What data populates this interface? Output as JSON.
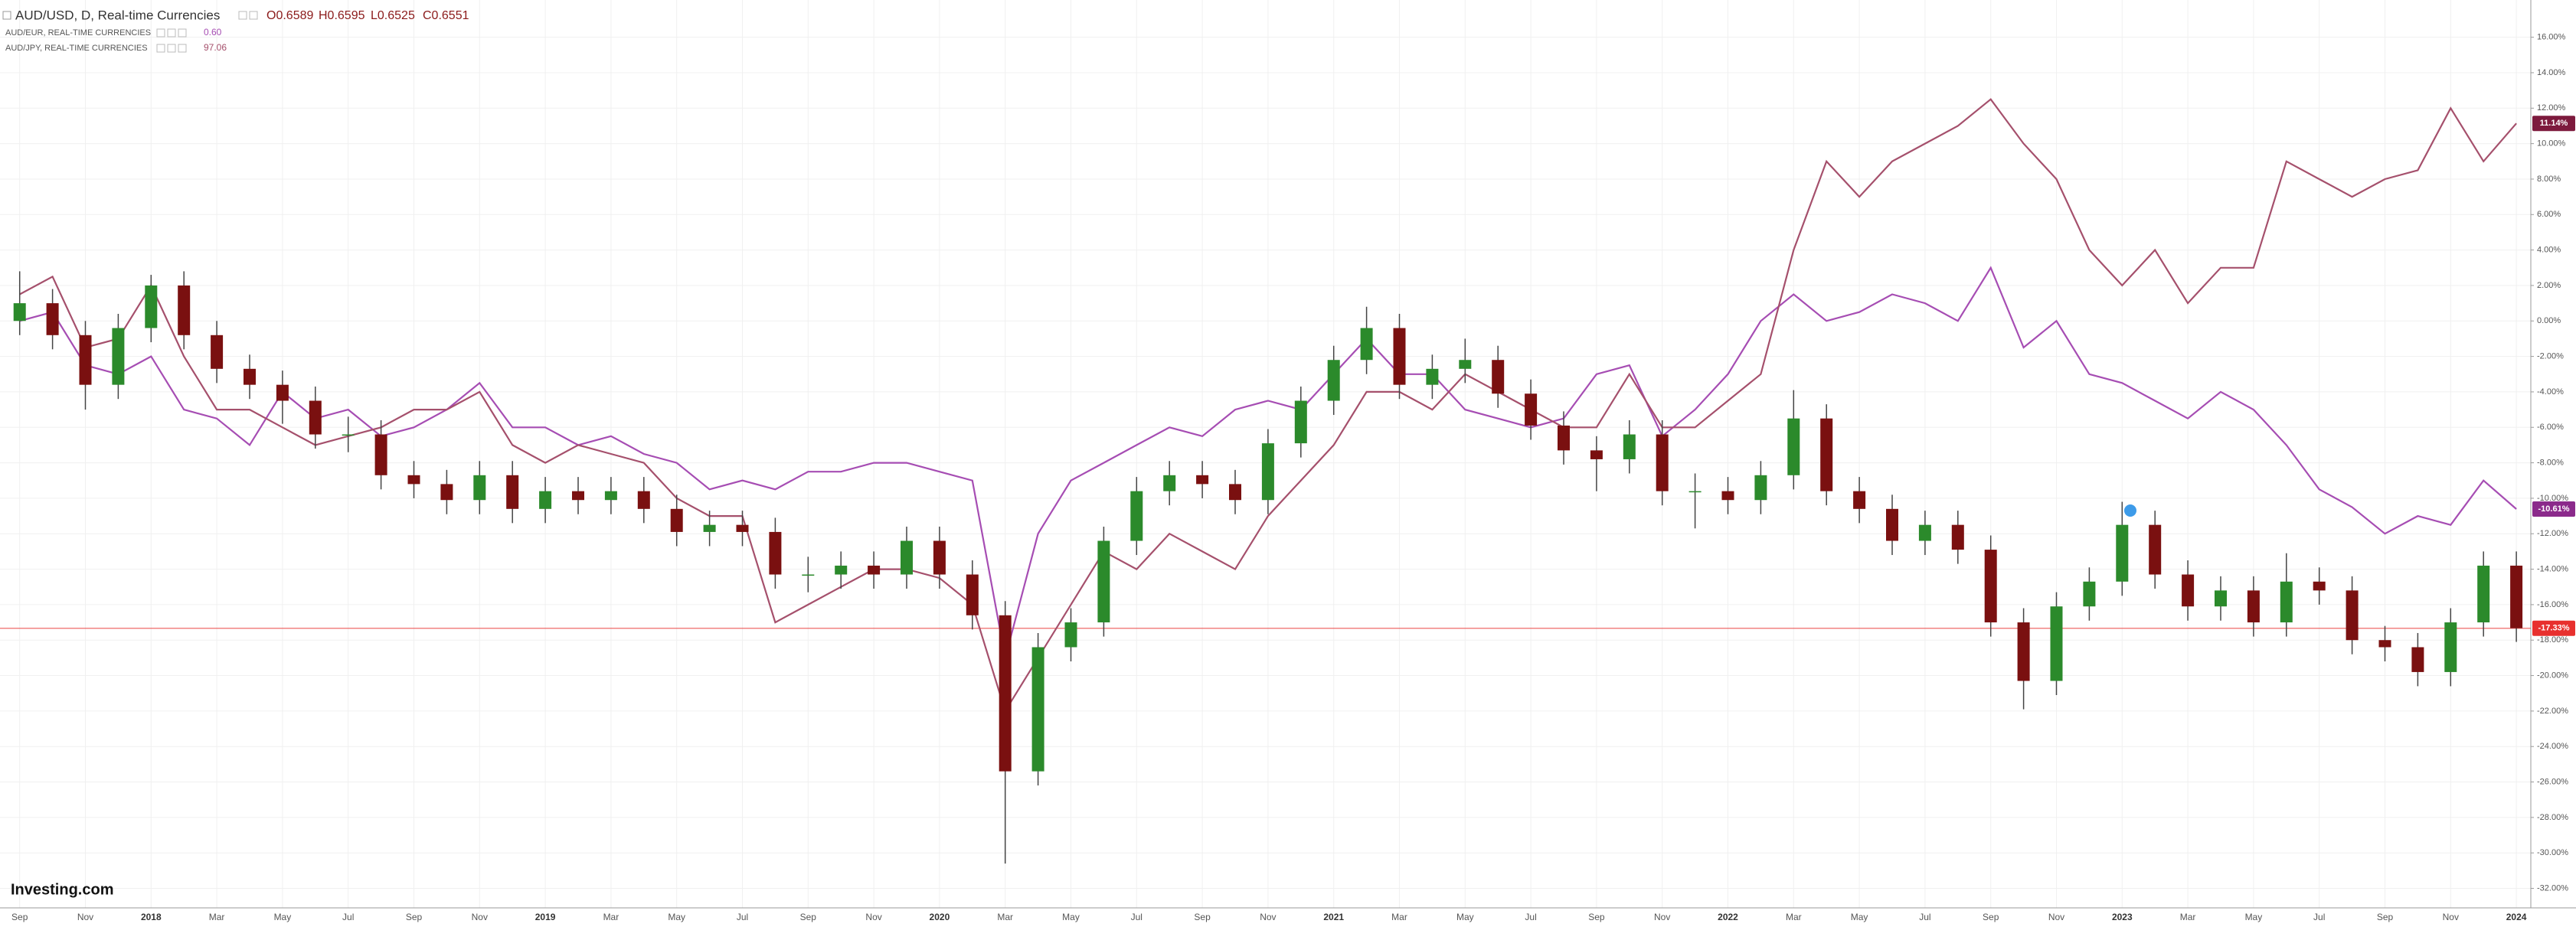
{
  "chart_data": {
    "type": "candlestick",
    "title": "AUD/USD, D, Real-time Currencies",
    "quote": [
      "O0.6589",
      "H0.6595",
      "L0.6525",
      "C0.6551"
    ],
    "brand": "Investing.com",
    "categories": [
      "Sep",
      null,
      "Nov",
      null,
      "2018",
      null,
      "Mar",
      null,
      "May",
      null,
      "Jul",
      null,
      "Sep",
      null,
      "Nov",
      null,
      "2019",
      null,
      "Mar",
      null,
      "May",
      null,
      "Jul",
      null,
      "Sep",
      null,
      "Nov",
      null,
      "2020",
      null,
      "Mar",
      null,
      "May",
      null,
      "Jul",
      null,
      "Sep",
      null,
      "Nov",
      null,
      "2021",
      null,
      "Mar",
      null,
      "May",
      null,
      "Jul",
      null,
      "Sep",
      null,
      "Nov",
      null,
      "2022",
      null,
      "Mar",
      null,
      "May",
      null,
      "Jul",
      null,
      "Sep",
      null,
      "Nov",
      null,
      "2023",
      null,
      "Mar",
      null,
      "May",
      null,
      "Jul",
      null,
      "Sep",
      null,
      "Nov",
      null,
      "2024"
    ],
    "candles": {
      "up_color": "#2b8a2b",
      "down_color": "#7a1010",
      "open": [
        0.0,
        1.0,
        -0.8,
        -3.6,
        -0.4,
        2.0,
        -0.8,
        -2.7,
        -3.6,
        -4.5,
        -6.4,
        -6.4,
        -8.7,
        -9.2,
        -10.1,
        -8.7,
        -10.6,
        -9.6,
        -10.1,
        -9.6,
        -10.6,
        -11.9,
        -11.5,
        -11.9,
        -14.3,
        -14.3,
        -13.8,
        -14.3,
        -12.4,
        -14.3,
        -16.6,
        -25.4,
        -18.4,
        -17.0,
        -12.4,
        -9.6,
        -8.7,
        -9.2,
        -10.1,
        -6.9,
        -4.5,
        -2.2,
        -0.4,
        -3.6,
        -2.7,
        -2.2,
        -4.1,
        -5.9,
        -7.3,
        -7.8,
        -6.4,
        -9.6,
        -9.6,
        -10.1,
        -8.7,
        -5.5,
        -9.6,
        -10.6,
        -12.4,
        -11.5,
        -12.9,
        -17.0,
        -20.3,
        -16.1,
        -14.7,
        -11.5,
        -14.3,
        -16.1,
        -15.2,
        -17.0,
        -14.7,
        -15.2,
        -18.0,
        -18.4,
        -19.8,
        -17.0,
        -13.8
      ],
      "high": [
        2.8,
        1.8,
        0.0,
        0.4,
        2.6,
        2.8,
        0.0,
        -1.9,
        -2.8,
        -3.7,
        -5.4,
        -5.6,
        -7.9,
        -8.4,
        -7.9,
        -7.9,
        -8.8,
        -8.8,
        -8.8,
        -8.8,
        -9.8,
        -10.7,
        -10.7,
        -11.1,
        -13.3,
        -13.0,
        -13.0,
        -11.6,
        -11.6,
        -13.5,
        -15.8,
        -17.6,
        -16.2,
        -11.6,
        -8.8,
        -7.9,
        -7.9,
        -8.4,
        -6.1,
        -3.7,
        -1.4,
        0.8,
        0.4,
        -1.9,
        -1.0,
        -1.4,
        -3.3,
        -5.1,
        -6.5,
        -5.6,
        -5.6,
        -8.6,
        -8.8,
        -7.9,
        -3.9,
        -4.7,
        -8.8,
        -9.8,
        -10.7,
        -10.7,
        -12.1,
        -16.2,
        -15.3,
        -13.9,
        -10.2,
        -10.7,
        -13.5,
        -14.4,
        -14.4,
        -13.1,
        -13.9,
        -14.4,
        -17.2,
        -17.6,
        -16.2,
        -13.0,
        -13.0
      ],
      "low": [
        -0.8,
        -1.6,
        -5.0,
        -4.4,
        -1.2,
        -1.6,
        -3.5,
        -4.4,
        -5.8,
        -7.2,
        -7.4,
        -9.5,
        -10.0,
        -10.9,
        -10.9,
        -11.4,
        -11.4,
        -10.9,
        -10.9,
        -11.4,
        -12.7,
        -12.7,
        -12.7,
        -15.1,
        -15.3,
        -15.1,
        -15.1,
        -15.1,
        -15.1,
        -17.4,
        -30.6,
        -26.2,
        -19.2,
        -17.8,
        -13.2,
        -10.4,
        -10.0,
        -10.9,
        -10.9,
        -7.7,
        -5.3,
        -3.0,
        -4.4,
        -4.4,
        -3.5,
        -4.9,
        -6.7,
        -8.1,
        -9.6,
        -8.6,
        -10.4,
        -11.7,
        -10.9,
        -10.9,
        -9.5,
        -10.4,
        -11.4,
        -13.2,
        -13.2,
        -13.7,
        -17.8,
        -21.9,
        -21.1,
        -16.9,
        -15.5,
        -15.1,
        -16.9,
        -16.9,
        -17.8,
        -17.8,
        -16.0,
        -18.8,
        -19.2,
        -20.6,
        -20.6,
        -17.8,
        -18.1
      ],
      "close": [
        1.0,
        -0.8,
        -3.6,
        -0.4,
        2.0,
        -0.8,
        -2.7,
        -3.6,
        -4.5,
        -6.4,
        -6.4,
        -8.7,
        -9.2,
        -10.1,
        -8.7,
        -10.6,
        -9.6,
        -10.1,
        -9.6,
        -10.6,
        -11.9,
        -11.5,
        -11.9,
        -14.3,
        -14.3,
        -13.8,
        -14.3,
        -12.4,
        -14.3,
        -16.6,
        -25.4,
        -18.4,
        -17.0,
        -12.4,
        -9.6,
        -8.7,
        -9.2,
        -10.1,
        -6.9,
        -4.5,
        -2.2,
        -0.4,
        -3.6,
        -2.7,
        -2.2,
        -4.1,
        -5.9,
        -7.3,
        -7.8,
        -6.4,
        -9.6,
        -9.6,
        -10.1,
        -8.7,
        -5.5,
        -9.6,
        -10.6,
        -12.4,
        -11.5,
        -12.9,
        -17.0,
        -20.3,
        -16.1,
        -14.7,
        -11.5,
        -14.3,
        -16.1,
        -15.2,
        -17.0,
        -14.7,
        -15.2,
        -18.0,
        -18.4,
        -19.8,
        -17.0,
        -13.8,
        -17.33
      ]
    },
    "price_line": {
      "value": -17.33,
      "label": "-17.33%",
      "color": "#e8302e"
    },
    "series": [
      {
        "name": "AUD/EUR, REAL-TIME CURRENCIES",
        "quote": "0.60",
        "color": "#a64db3",
        "label_color": "#8b2a8b",
        "last_label": "-10.61%",
        "values": [
          0,
          0.5,
          -2.5,
          -3,
          -2,
          -5,
          -5.5,
          -7,
          -4,
          -5.5,
          -5,
          -6.5,
          -6,
          -5,
          -3.5,
          -6,
          -6,
          -7,
          -6.5,
          -7.5,
          -8,
          -9.5,
          -9,
          -9.5,
          -8.5,
          -8.5,
          -8,
          -8,
          -8.5,
          -9,
          -19,
          -12,
          -9,
          -8,
          -7,
          -6,
          -6.5,
          -5,
          -4.5,
          -5,
          -3,
          -1,
          -3,
          -3,
          -5,
          -5.5,
          -6,
          -5.5,
          -3,
          -2.5,
          -6.5,
          -5,
          -3,
          0,
          1.5,
          0,
          0.5,
          1.5,
          1,
          0,
          3,
          -1.5,
          0,
          -3,
          -3.5,
          -4.5,
          -5.5,
          -4,
          -5,
          -7,
          -9.5,
          -10.5,
          -12,
          -11,
          -11.5,
          -9,
          -10.61
        ]
      },
      {
        "name": "AUD/JPY, REAL-TIME CURRENCIES",
        "quote": "97.06",
        "color": "#a5506c",
        "label_color": "#7d1a3d",
        "last_label": "11.14%",
        "values": [
          1.5,
          2.5,
          -1.5,
          -1,
          2,
          -2,
          -5,
          -5,
          -6,
          -7,
          -6.5,
          -6,
          -5,
          -5,
          -4,
          -7,
          -8,
          -7,
          -7.5,
          -8,
          -10,
          -11,
          -11,
          -17,
          -16,
          -15,
          -14,
          -14,
          -14.5,
          -16,
          -22,
          -19,
          -16,
          -13,
          -14,
          -12,
          -13,
          -14,
          -11,
          -9,
          -7,
          -4,
          -4,
          -5,
          -3,
          -4,
          -5,
          -6,
          -6,
          -3,
          -6,
          -6,
          -4.5,
          -3,
          4,
          9,
          7,
          9,
          10,
          11,
          12.5,
          10,
          8,
          4,
          2,
          4,
          1,
          3,
          3,
          9,
          8,
          7,
          8,
          8.5,
          12,
          9,
          11.14
        ]
      }
    ],
    "ylim": [
      -33.1,
      18.1
    ],
    "yticks": [
      {
        "value": 16,
        "label": "16.00%"
      },
      {
        "value": 14,
        "label": "14.00%"
      },
      {
        "value": 12,
        "label": "12.00%"
      },
      {
        "value": 10,
        "label": "10.00%"
      },
      {
        "value": 8,
        "label": "8.00%"
      },
      {
        "value": 6,
        "label": "6.00%"
      },
      {
        "value": 4,
        "label": "4.00%"
      },
      {
        "value": 2,
        "label": "2.00%"
      },
      {
        "value": 0,
        "label": "0.00%"
      },
      {
        "value": -2,
        "label": "-2.00%"
      },
      {
        "value": -4,
        "label": "-4.00%"
      },
      {
        "value": -6,
        "label": "-6.00%"
      },
      {
        "value": -8,
        "label": "-8.00%"
      },
      {
        "value": -10,
        "label": "-10.00%"
      },
      {
        "value": -12,
        "label": "-12.00%"
      },
      {
        "value": -14,
        "label": "-14.00%"
      },
      {
        "value": -16,
        "label": "-16.00%"
      },
      {
        "value": -18,
        "label": "-18.00%"
      },
      {
        "value": -20,
        "label": "-20.00%"
      },
      {
        "value": -22,
        "label": "-22.00%"
      },
      {
        "value": -24,
        "label": "-24.00%"
      },
      {
        "value": -26,
        "label": "-26.00%"
      },
      {
        "value": -28,
        "label": "-28.00%"
      },
      {
        "value": -30,
        "label": "-30.00%"
      },
      {
        "value": -32,
        "label": "-32.00%"
      }
    ],
    "grid": true
  }
}
